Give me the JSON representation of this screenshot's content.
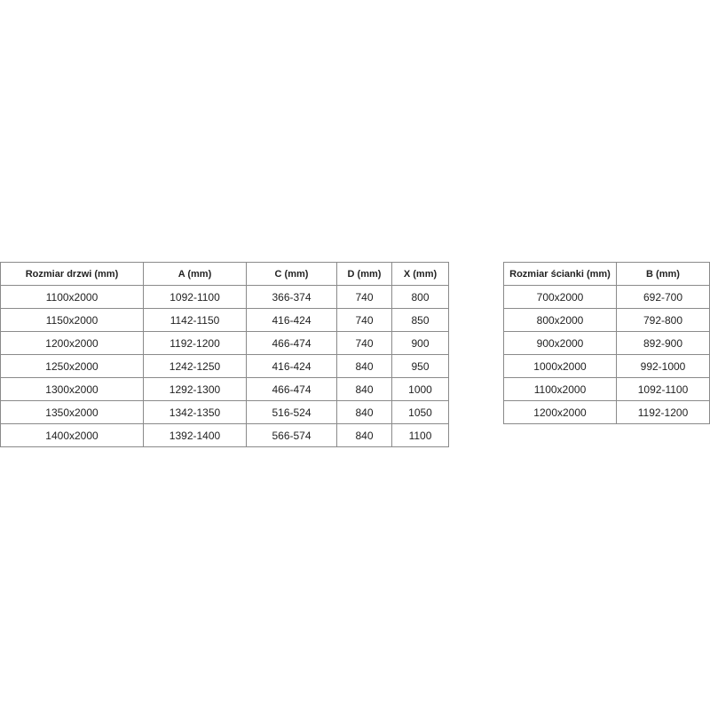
{
  "doors_table": {
    "headers": [
      "Rozmiar drzwi (mm)",
      "A (mm)",
      "C (mm)",
      "D (mm)",
      "X (mm)"
    ],
    "rows": [
      [
        "1100x2000",
        "1092-1100",
        "366-374",
        "740",
        "800"
      ],
      [
        "1150x2000",
        "1142-1150",
        "416-424",
        "740",
        "850"
      ],
      [
        "1200x2000",
        "1192-1200",
        "466-474",
        "740",
        "900"
      ],
      [
        "1250x2000",
        "1242-1250",
        "416-424",
        "840",
        "950"
      ],
      [
        "1300x2000",
        "1292-1300",
        "466-474",
        "840",
        "1000"
      ],
      [
        "1350x2000",
        "1342-1350",
        "516-524",
        "840",
        "1050"
      ],
      [
        "1400x2000",
        "1392-1400",
        "566-574",
        "840",
        "1100"
      ]
    ]
  },
  "wall_table": {
    "headers": [
      "Rozmiar ścianki (mm)",
      "B (mm)"
    ],
    "rows": [
      [
        "700x2000",
        "692-700"
      ],
      [
        "800x2000",
        "792-800"
      ],
      [
        "900x2000",
        "892-900"
      ],
      [
        "1000x2000",
        "992-1000"
      ],
      [
        "1100x2000",
        "1092-1100"
      ],
      [
        "1200x2000",
        "1192-1200"
      ]
    ]
  }
}
